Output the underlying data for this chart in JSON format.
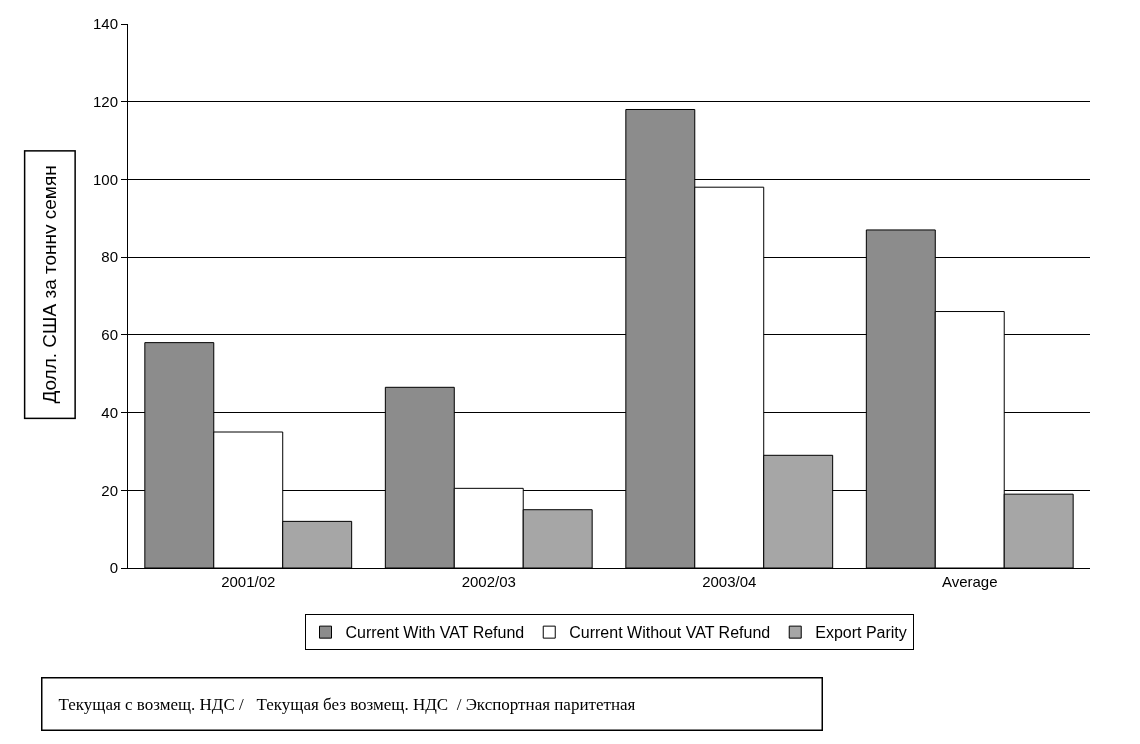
{
  "chart_data": {
    "type": "bar",
    "ylabel": "Долл. США за тоннv семян",
    "categories": [
      "2001/02",
      "2002/03",
      "2003/04",
      "Average"
    ],
    "series": [
      {
        "name": "Current With VAT Refund",
        "color": "#8c8c8c",
        "values": [
          58,
          46.5,
          118,
          87
        ]
      },
      {
        "name": "Current Without VAT Refund",
        "color": "#ffffff",
        "values": [
          35,
          20.5,
          98,
          66
        ]
      },
      {
        "name": "Export Parity",
        "color": "#a6a6a6",
        "values": [
          12,
          15,
          29,
          19
        ]
      }
    ],
    "ylim": [
      0,
      140
    ],
    "yticks": [
      0,
      20,
      40,
      60,
      80,
      100,
      120,
      140
    ],
    "grid": "y",
    "legend": "bottom",
    "annotations": [
      "Текущая с возмещ. НДС /   Текущая без возмещ. НДС  / Экспортная паритетная"
    ]
  }
}
